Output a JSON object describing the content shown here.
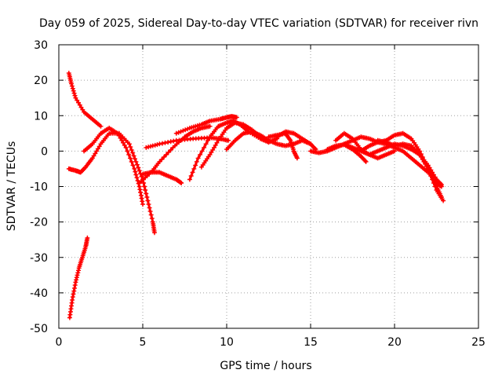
{
  "chart_data": {
    "type": "scatter",
    "title": "Day 059 of 2025, Sidereal Day-to-day VTEC variation (SDTVAR) for receiver rivn",
    "xlabel": "GPS time / hours",
    "ylabel": "SDTVAR / TECUs",
    "xlim": [
      0,
      25
    ],
    "ylim": [
      -50,
      30
    ],
    "xticks": [
      0,
      5,
      10,
      15,
      20,
      25
    ],
    "yticks": [
      -50,
      -40,
      -30,
      -20,
      -10,
      0,
      10,
      20,
      30
    ],
    "xtick_labels": [
      "0",
      "5",
      "10",
      "15",
      "20",
      "25"
    ],
    "ytick_labels": [
      "-50",
      "-40",
      "-30",
      "-20",
      "-10",
      "0",
      "10",
      "20",
      "30"
    ],
    "grid": true,
    "legend": false,
    "marker": "+",
    "color": "#ff0000",
    "series": [
      {
        "name": "arc-1",
        "x": [
          0.65,
          0.8,
          1.0,
          1.2,
          1.4,
          1.6,
          1.7
        ],
        "y": [
          -47,
          -42,
          -37,
          -33,
          -30,
          -27,
          -24.5
        ]
      },
      {
        "name": "arc-2",
        "x": [
          0.6,
          0.75,
          1.0,
          1.5,
          2.0,
          2.5
        ],
        "y": [
          22,
          19,
          15,
          11,
          9,
          7
        ]
      },
      {
        "name": "arc-3",
        "x": [
          0.6,
          1.0,
          1.3,
          1.6,
          2.0,
          2.5,
          3.0,
          3.6,
          4.2,
          4.6,
          5.0,
          5.3,
          5.6,
          5.7
        ],
        "y": [
          -5,
          -5.5,
          -6,
          -4.5,
          -2,
          2,
          5,
          5,
          2,
          -3,
          -8,
          -14,
          -20,
          -23
        ]
      },
      {
        "name": "arc-4",
        "x": [
          1.5,
          2.0,
          2.5,
          3.0,
          3.5,
          4.0,
          4.5,
          4.8,
          5.0
        ],
        "y": [
          0,
          2,
          5,
          6.5,
          5,
          1,
          -5,
          -10,
          -15
        ]
      },
      {
        "name": "arc-5",
        "x": [
          5.0,
          5.5,
          6.0,
          6.5,
          7.0,
          7.3
        ],
        "y": [
          -6.5,
          -6,
          -6,
          -7,
          -8,
          -9
        ]
      },
      {
        "name": "arc-6",
        "x": [
          4.8,
          5.5,
          6.0,
          6.8,
          7.5,
          8.0,
          8.5,
          9.0
        ],
        "y": [
          -9,
          -6,
          -3,
          1,
          4,
          5.5,
          6.5,
          7
        ]
      },
      {
        "name": "arc-7",
        "x": [
          5.2,
          6.0,
          7.0,
          8.0,
          9.0,
          9.6,
          10.1
        ],
        "y": [
          1,
          2,
          3,
          3.5,
          3.8,
          3.5,
          3.0
        ]
      },
      {
        "name": "arc-8",
        "x": [
          7.8,
          8.3,
          9.0,
          9.5,
          10.0,
          10.4,
          10.8,
          11.3,
          12.0,
          12.5
        ],
        "y": [
          -8,
          -2,
          4,
          7,
          8,
          8.5,
          7.5,
          5.5,
          3.5,
          2.5
        ]
      },
      {
        "name": "arc-9",
        "x": [
          8.5,
          9.0,
          9.5,
          10.0,
          10.5,
          11.0,
          11.5,
          12.0,
          12.5,
          13.0
        ],
        "y": [
          -4.5,
          -1,
          3,
          6.5,
          8,
          7.5,
          6,
          4,
          2.5,
          3.5
        ]
      },
      {
        "name": "arc-10",
        "x": [
          7.0,
          7.8,
          8.5,
          9.0,
          9.6,
          10.0,
          10.3,
          10.6
        ],
        "y": [
          5,
          6.5,
          7.5,
          8.5,
          9,
          9.5,
          9.8,
          9.5
        ]
      },
      {
        "name": "arc-11",
        "x": [
          10.0,
          10.5,
          11.0,
          11.5,
          12.0,
          12.5,
          13.0,
          13.5,
          14.0,
          14.5,
          15.0,
          15.3
        ],
        "y": [
          0.5,
          3,
          5,
          5.5,
          4.5,
          3,
          2,
          1.5,
          2,
          3,
          2,
          0.5
        ]
      },
      {
        "name": "arc-12",
        "x": [
          12.5,
          13.0,
          13.5,
          13.8,
          14.0,
          14.2
        ],
        "y": [
          4,
          4.5,
          5,
          3,
          0,
          -2
        ]
      },
      {
        "name": "arc-13",
        "x": [
          13.0,
          13.5,
          14.0,
          14.5,
          15.0
        ],
        "y": [
          4,
          5.5,
          5,
          3.5,
          2
        ]
      },
      {
        "name": "arc-14",
        "x": [
          15.0,
          15.5,
          16.0,
          16.5,
          17.0,
          17.5,
          18.0,
          18.5,
          19.0,
          19.5,
          20.0,
          20.5,
          21.0,
          21.5,
          22.0,
          22.5,
          22.8
        ],
        "y": [
          0,
          -0.5,
          0,
          1,
          2,
          1,
          0,
          -1,
          0,
          1,
          2,
          1.5,
          0.5,
          -1,
          -4,
          -8,
          -9.5
        ]
      },
      {
        "name": "arc-15",
        "x": [
          16.5,
          17.0,
          17.5,
          18.0,
          18.5,
          19.0,
          19.5,
          20.0
        ],
        "y": [
          3,
          5,
          3.5,
          0.5,
          -1,
          -2,
          -1,
          0
        ]
      },
      {
        "name": "arc-16",
        "x": [
          17.0,
          17.5,
          18.0,
          18.5,
          19.0,
          19.5,
          20.0,
          20.5,
          21.0,
          21.5,
          22.0,
          22.5,
          22.9
        ],
        "y": [
          2,
          3,
          4,
          3.5,
          2.5,
          3,
          4.5,
          5,
          3.5,
          0,
          -5,
          -11,
          -14
        ]
      },
      {
        "name": "arc-17",
        "x": [
          18.0,
          18.5,
          19.0,
          19.5,
          20.0,
          20.5,
          21.0,
          21.5,
          22.0,
          22.5,
          22.8
        ],
        "y": [
          0,
          1.5,
          2.5,
          2,
          1,
          0,
          -2,
          -4,
          -6,
          -9,
          -10
        ]
      },
      {
        "name": "arc-18",
        "x": [
          16.0,
          16.5,
          17.0,
          17.5,
          18.0,
          18.3
        ],
        "y": [
          0.5,
          1.5,
          1.8,
          0.5,
          -1.5,
          -3
        ]
      },
      {
        "name": "arc-19",
        "x": [
          19.0,
          19.5,
          20.0,
          20.5,
          21.0,
          21.5,
          22.0,
          22.5,
          22.8
        ],
        "y": [
          3,
          2.5,
          1.5,
          2,
          1.5,
          -1,
          -5,
          -10,
          -13
        ]
      }
    ]
  }
}
